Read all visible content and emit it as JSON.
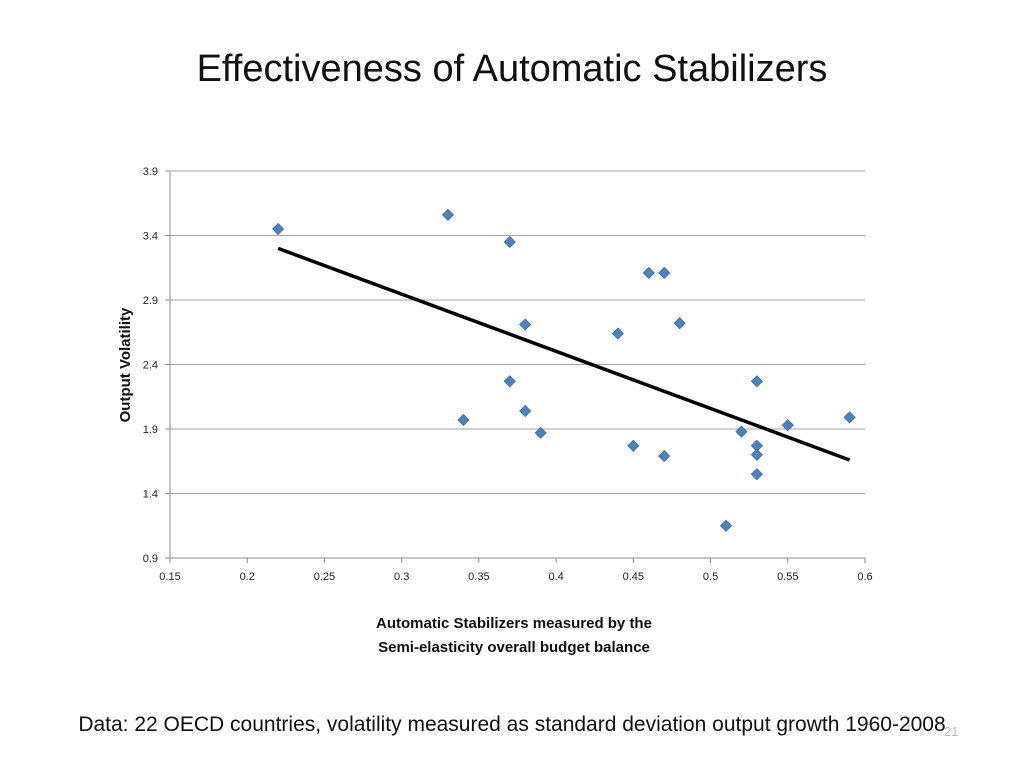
{
  "slide": {
    "title": "Effectiveness of Automatic Stabilizers",
    "footnote": "Data: 22 OECD countries, volatility measured as standard deviation output growth 1960-2008",
    "slide_number": "21"
  },
  "chart_data": {
    "type": "scatter",
    "title": "",
    "xlabel": [
      "Automatic Stabilizers measured by the",
      "Semi-elasticity overall budget balance"
    ],
    "ylabel": "Output Volatility",
    "xlim": [
      0.15,
      0.6
    ],
    "ylim": [
      0.9,
      3.9
    ],
    "xticks": [
      "0.15",
      "0.2",
      "0.25",
      "0.3",
      "0.35",
      "0.4",
      "0.45",
      "0.5",
      "0.55",
      "0.6"
    ],
    "yticks": [
      "0.9",
      "1.4",
      "1.9",
      "2.4",
      "2.9",
      "3.4",
      "3.9"
    ],
    "grid": "horizontal",
    "legend": "none",
    "marker_color": "#4f81bd",
    "line_color": "#000000",
    "series": [
      {
        "points": [
          [
            0.22,
            3.45
          ],
          [
            0.33,
            3.56
          ],
          [
            0.34,
            1.97
          ],
          [
            0.37,
            3.35
          ],
          [
            0.37,
            2.27
          ],
          [
            0.38,
            2.71
          ],
          [
            0.38,
            2.04
          ],
          [
            0.39,
            1.87
          ],
          [
            0.44,
            2.64
          ],
          [
            0.45,
            1.77
          ],
          [
            0.46,
            3.11
          ],
          [
            0.47,
            3.11
          ],
          [
            0.47,
            1.69
          ],
          [
            0.48,
            2.72
          ],
          [
            0.51,
            1.15
          ],
          [
            0.52,
            1.88
          ],
          [
            0.53,
            2.27
          ],
          [
            0.53,
            1.77
          ],
          [
            0.53,
            1.7
          ],
          [
            0.53,
            1.55
          ],
          [
            0.55,
            1.93
          ],
          [
            0.59,
            1.99
          ]
        ]
      }
    ],
    "trendline": {
      "x": [
        0.22,
        0.59
      ],
      "y": [
        3.3,
        1.66
      ]
    }
  }
}
